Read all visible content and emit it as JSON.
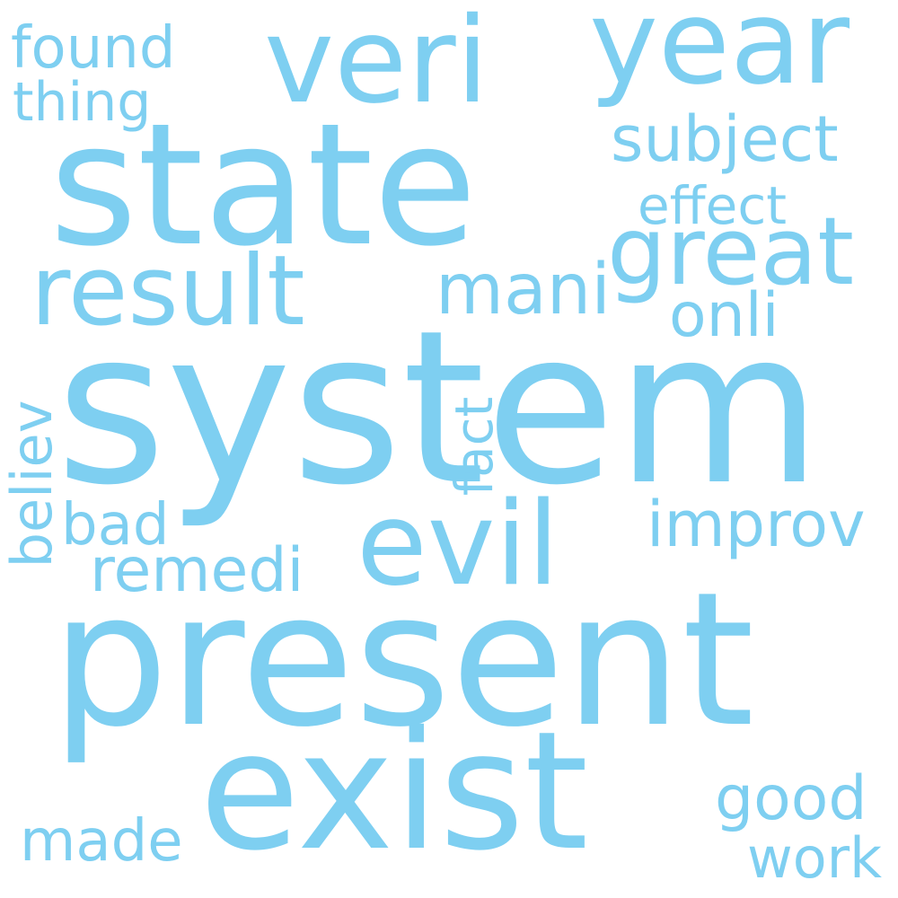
{
  "color": "#7ecff1",
  "words": [
    {
      "key": "system",
      "text": "system"
    },
    {
      "key": "present",
      "text": "present"
    },
    {
      "key": "state",
      "text": "state"
    },
    {
      "key": "exist",
      "text": "exist"
    },
    {
      "key": "evil",
      "text": "evil"
    },
    {
      "key": "veri",
      "text": "veri"
    },
    {
      "key": "year",
      "text": "year"
    },
    {
      "key": "result",
      "text": "result"
    },
    {
      "key": "great",
      "text": "great"
    },
    {
      "key": "mani",
      "text": "mani"
    },
    {
      "key": "subject",
      "text": "subject"
    },
    {
      "key": "improv",
      "text": "improv"
    },
    {
      "key": "remedi",
      "text": "remedi"
    },
    {
      "key": "good",
      "text": "good"
    },
    {
      "key": "found",
      "text": "found"
    },
    {
      "key": "thing",
      "text": "thing"
    },
    {
      "key": "effect",
      "text": "effect"
    },
    {
      "key": "onli",
      "text": "onli"
    },
    {
      "key": "believ",
      "text": "believ"
    },
    {
      "key": "fact",
      "text": "fact"
    },
    {
      "key": "bad",
      "text": "bad"
    },
    {
      "key": "made",
      "text": "made"
    },
    {
      "key": "work",
      "text": "work"
    }
  ]
}
